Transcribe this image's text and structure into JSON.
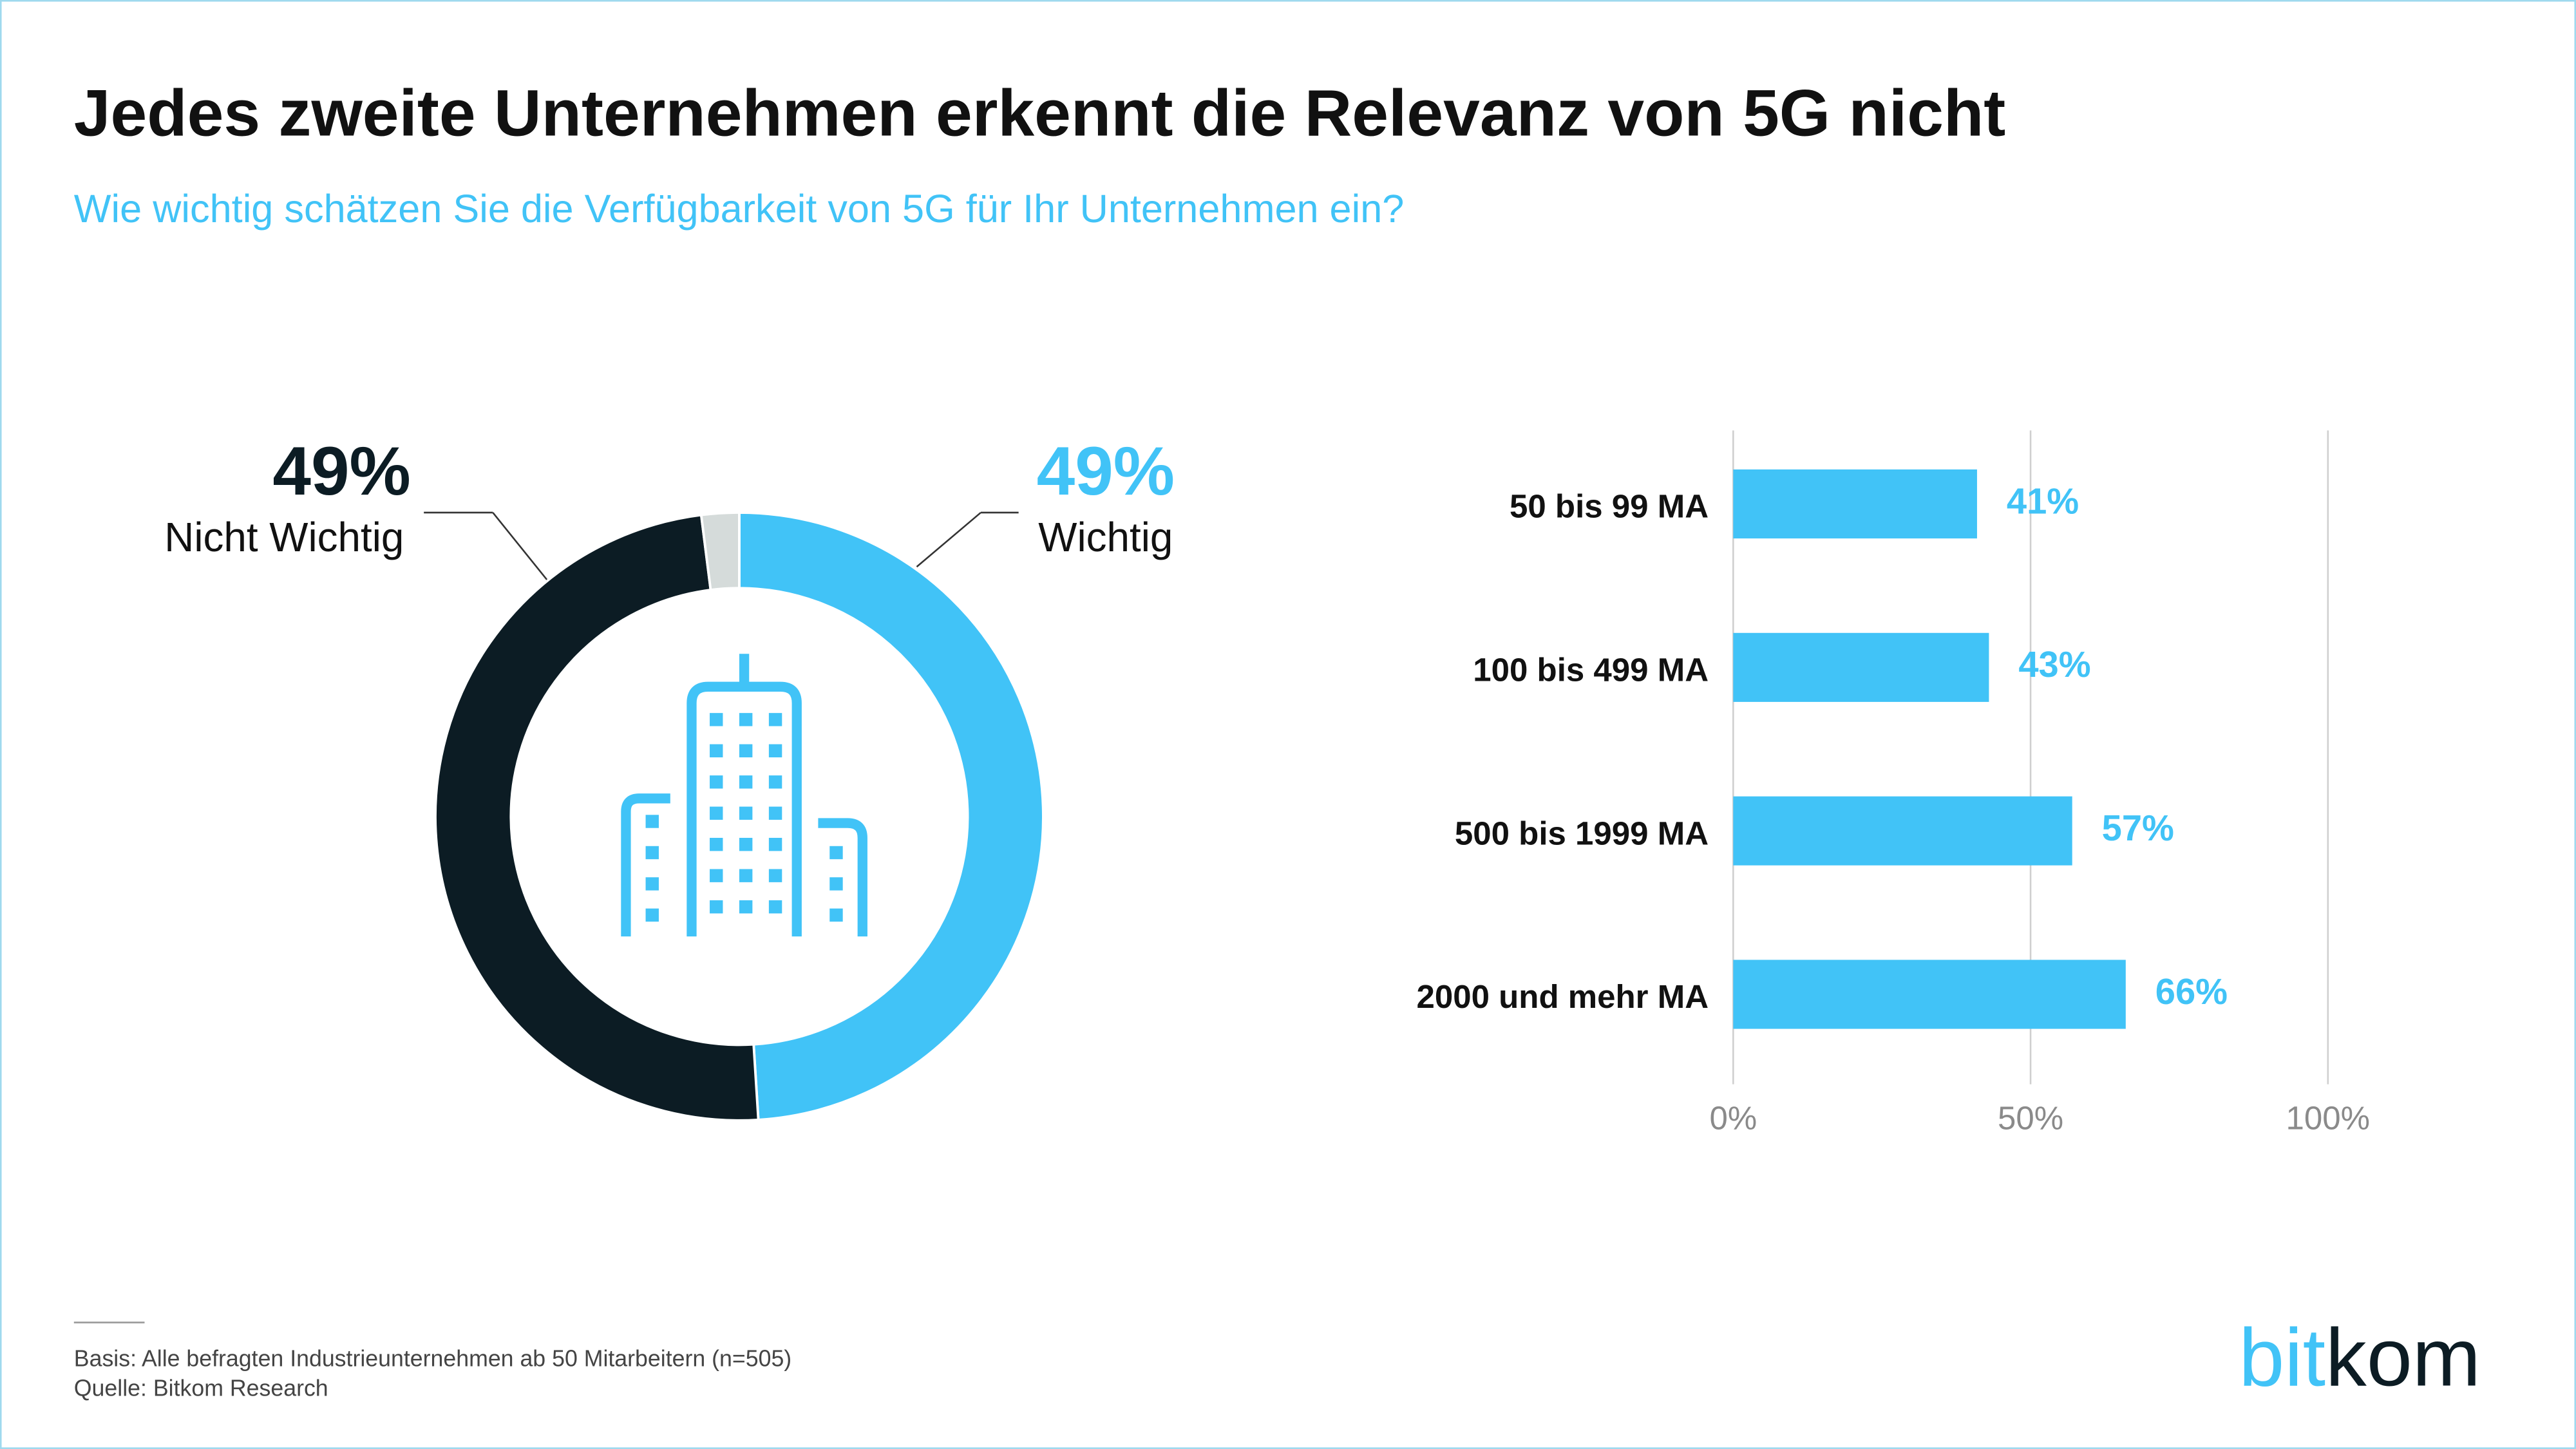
{
  "header": {
    "title": "Jedes zweite Unternehmen erkennt die Relevanz von 5G nicht",
    "subtitle": "Wie wichtig schätzen Sie die Verfügbarkeit von 5G für Ihr Unternehmen ein?"
  },
  "chart_data": [
    {
      "type": "pie",
      "categories": [
        "Wichtig",
        "Nicht Wichtig",
        null
      ],
      "values": [
        49,
        49,
        2
      ],
      "value_labels": [
        "49%",
        "49%",
        null
      ],
      "colors": [
        "#41c3f7",
        "#0c1c24",
        "#d5dbda"
      ]
    },
    {
      "type": "bar",
      "categories": [
        "50 bis 99 MA",
        "100 bis 499 MA",
        "500 bis 1999 MA",
        "2000 und mehr MA"
      ],
      "values": [
        41,
        43,
        57,
        66
      ],
      "value_labels": [
        "41%",
        "43%",
        "57%",
        "66%"
      ],
      "color": "#41c3f7",
      "xlim": [
        0,
        100
      ],
      "xticks": [
        {
          "value": 0,
          "label": "0%"
        },
        {
          "value": 50,
          "label": "50%"
        },
        {
          "value": 100,
          "label": "100%"
        }
      ],
      "grid": true
    }
  ],
  "footer": {
    "basis": "Basis: Alle befragten Industrieunternehmen ab 50 Mitarbeitern (n=505)",
    "source": "Quelle: Bitkom Research"
  },
  "logo": {
    "first": "bit",
    "second": "kom"
  }
}
